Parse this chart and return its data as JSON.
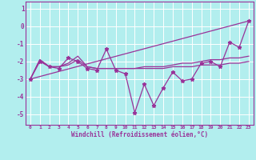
{
  "xlabel": "Windchill (Refroidissement éolien,°C)",
  "background_color": "#b2eeee",
  "line_color": "#993399",
  "grid_color": "#ffffff",
  "xlim": [
    -0.5,
    23.5
  ],
  "ylim": [
    -5.6,
    1.4
  ],
  "yticks": [
    1,
    0,
    -1,
    -2,
    -3,
    -4,
    -5
  ],
  "xticks": [
    0,
    1,
    2,
    3,
    4,
    5,
    6,
    7,
    8,
    9,
    10,
    11,
    12,
    13,
    14,
    15,
    16,
    17,
    18,
    19,
    20,
    21,
    22,
    23
  ],
  "series1_x": [
    0,
    1,
    2,
    3,
    4,
    5,
    6,
    7,
    8,
    9,
    10,
    11,
    12,
    13,
    14,
    15,
    16,
    17,
    18,
    19,
    20,
    21,
    22,
    23
  ],
  "series1_y": [
    -3.0,
    -2.0,
    -2.3,
    -2.4,
    -1.8,
    -2.0,
    -2.4,
    -2.5,
    -1.3,
    -2.5,
    -2.7,
    -4.9,
    -3.3,
    -4.5,
    -3.5,
    -2.6,
    -3.1,
    -3.0,
    -2.1,
    -2.0,
    -2.3,
    -0.9,
    -1.2,
    0.3
  ],
  "series2_x": [
    0,
    1,
    2,
    3,
    4,
    5,
    6,
    7,
    8,
    9,
    10,
    11,
    12,
    13,
    14,
    15,
    16,
    17,
    18,
    19,
    20,
    21,
    22,
    23
  ],
  "series2_y": [
    -3.0,
    -1.9,
    -2.3,
    -2.3,
    -2.1,
    -1.7,
    -2.3,
    -2.4,
    -2.4,
    -2.4,
    -2.4,
    -2.4,
    -2.3,
    -2.3,
    -2.3,
    -2.2,
    -2.1,
    -2.1,
    -2.0,
    -1.9,
    -1.9,
    -1.8,
    -1.8,
    -1.7
  ],
  "series3_x": [
    0,
    1,
    2,
    3,
    4,
    5,
    6,
    7,
    8,
    9,
    10,
    11,
    12,
    13,
    14,
    15,
    16,
    17,
    18,
    19,
    20,
    21,
    22,
    23
  ],
  "series3_y": [
    -3.0,
    -1.9,
    -2.3,
    -2.3,
    -2.2,
    -1.9,
    -2.3,
    -2.4,
    -2.4,
    -2.4,
    -2.4,
    -2.4,
    -2.4,
    -2.4,
    -2.4,
    -2.3,
    -2.3,
    -2.3,
    -2.2,
    -2.2,
    -2.2,
    -2.1,
    -2.1,
    -2.0
  ],
  "series4_x": [
    0,
    23
  ],
  "series4_y": [
    -3.0,
    0.3
  ]
}
